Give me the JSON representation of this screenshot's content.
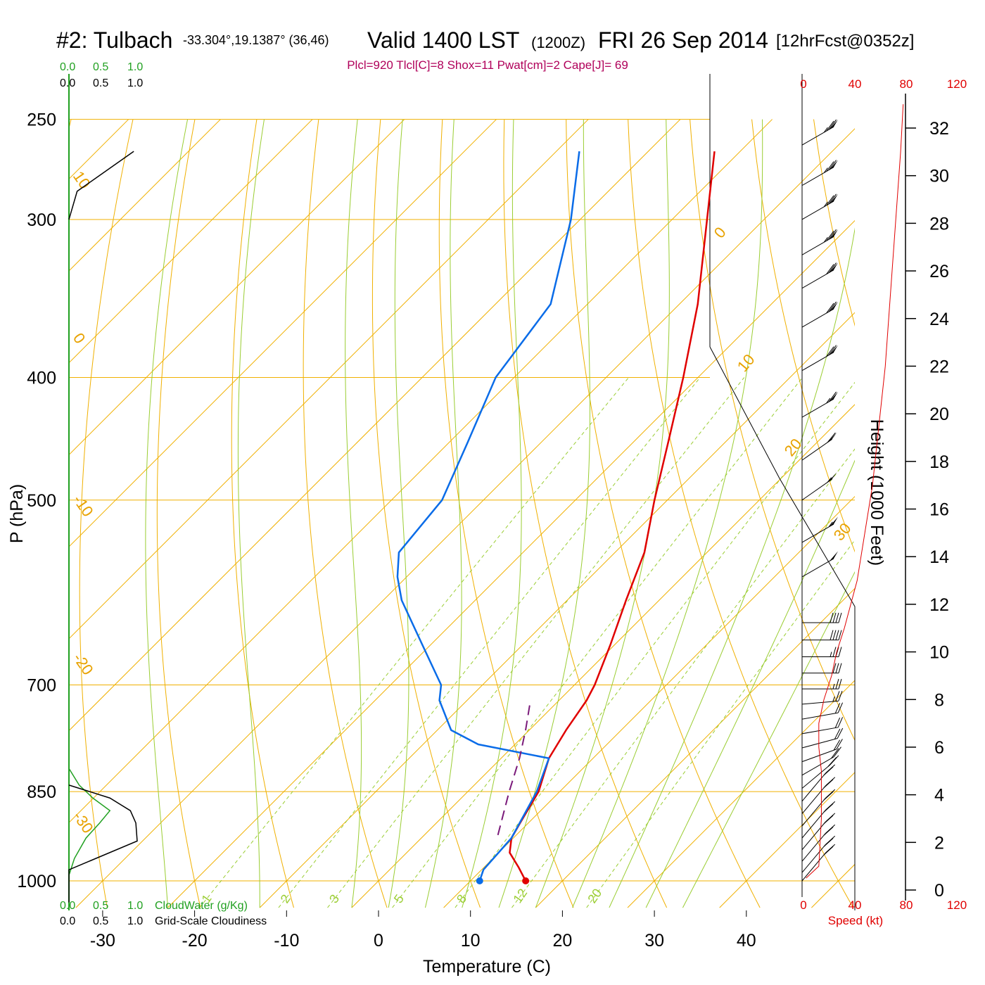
{
  "header": {
    "station": "#2: Tulbach",
    "coords": "-33.304°,19.1387° (36,46)",
    "valid": "Valid 1400 LST",
    "zulu": "(1200Z)",
    "date": "FRI 26 Sep 2014",
    "forecast": "[12hrFcst@0352z]",
    "indices": "Plcl=920 Tlcl[C]=8 Shox=11 Pwat[cm]=2 Cape[J]= 69"
  },
  "colors": {
    "temperature": "#e00000",
    "dewpoint": "#0a6ce8",
    "parcel": "#7a1a7a",
    "isotherm": "#f0b000",
    "dry_adiabat": "#f0b000",
    "moist_adiabat": "#9acd32",
    "mixing_ratio": "#9acd32",
    "cloud_water": "#20a020",
    "speed": "#e00000"
  },
  "labels": {
    "x_axis_title": "Temperature (C)",
    "y_axis_title": "P (hPa)",
    "height_axis_title": "Height (1000 Feet)",
    "speed_axis_title": "Speed (kt)",
    "cloudwater_title": "CloudWater (g/Kg)",
    "cloudiness_title": "Grid-Scale Cloudiness"
  },
  "cloud_scale": [
    "0.0",
    "0.5",
    "1.0"
  ],
  "speed_scale": [
    "0",
    "40",
    "80",
    "120"
  ],
  "isotherm_labels": [
    "0",
    "10",
    "20",
    "30"
  ],
  "dry_adiabat_labels": [
    "10",
    "0",
    "-10",
    "-20",
    "-30"
  ],
  "mixing_ratio_labels": [
    "1",
    "2",
    "3",
    "5",
    "8",
    "12",
    "20"
  ],
  "chart_data": {
    "type": "line",
    "title": "#2: Tulbach -33.304°,19.1387° (36,46) Valid 1400 LST (1200Z) FRI 26 Sep 2014 [12hrFcst@0352z]",
    "xlabel": "Temperature (C)",
    "ylabel": "P (hPa)",
    "x_ticks": [
      "-30",
      "-20",
      "-10",
      "0",
      "10",
      "20",
      "30",
      "40"
    ],
    "y_ticks": [
      "250",
      "300",
      "400",
      "500",
      "700",
      "850",
      "1000"
    ],
    "height_ticks": [
      "0",
      "2",
      "4",
      "6",
      "8",
      "10",
      "12",
      "14",
      "16",
      "18",
      "20",
      "22",
      "24",
      "26",
      "28",
      "30",
      "32"
    ],
    "xlim": [
      -38,
      43
    ],
    "ylim": [
      1050,
      250
    ],
    "y_scale": "log (skew-T)",
    "series": [
      {
        "name": "Temperature",
        "values": [
          {
            "p": 1000,
            "t": 16.0
          },
          {
            "p": 975,
            "t": 13.7
          },
          {
            "p": 950,
            "t": 11.2
          },
          {
            "p": 925,
            "t": 9.8
          },
          {
            "p": 900,
            "t": 9.1
          },
          {
            "p": 850,
            "t": 7.7
          },
          {
            "p": 800,
            "t": 5.2
          },
          {
            "p": 760,
            "t": 4.0
          },
          {
            "p": 720,
            "t": 3.0
          },
          {
            "p": 700,
            "t": 2.2
          },
          {
            "p": 650,
            "t": -0.5
          },
          {
            "p": 600,
            "t": -3.6
          },
          {
            "p": 550,
            "t": -6.8
          },
          {
            "p": 500,
            "t": -11.4
          },
          {
            "p": 450,
            "t": -16.2
          },
          {
            "p": 400,
            "t": -21.6
          },
          {
            "p": 350,
            "t": -28.0
          },
          {
            "p": 300,
            "t": -36.2
          },
          {
            "p": 265,
            "t": -42.8
          }
        ]
      },
      {
        "name": "Dewpoint",
        "values": [
          {
            "p": 1000,
            "t": 11.0
          },
          {
            "p": 980,
            "t": 10.2
          },
          {
            "p": 925,
            "t": 9.8
          },
          {
            "p": 850,
            "t": 7.5
          },
          {
            "p": 800,
            "t": 5.2
          },
          {
            "p": 780,
            "t": -4.0
          },
          {
            "p": 760,
            "t": -8.5
          },
          {
            "p": 720,
            "t": -13.0
          },
          {
            "p": 700,
            "t": -14.5
          },
          {
            "p": 650,
            "t": -21.0
          },
          {
            "p": 600,
            "t": -28.0
          },
          {
            "p": 575,
            "t": -31.0
          },
          {
            "p": 550,
            "t": -33.5
          },
          {
            "p": 500,
            "t": -34.5
          },
          {
            "p": 450,
            "t": -38.0
          },
          {
            "p": 400,
            "t": -42.0
          },
          {
            "p": 350,
            "t": -44.0
          },
          {
            "p": 300,
            "t": -51.0
          },
          {
            "p": 265,
            "t": -57.5
          }
        ]
      },
      {
        "name": "Parcel",
        "values": [
          {
            "p": 920,
            "t": 8.0
          },
          {
            "p": 850,
            "t": 4.5
          },
          {
            "p": 800,
            "t": 2.0
          },
          {
            "p": 760,
            "t": -0.4
          },
          {
            "p": 720,
            "t": -3.1
          }
        ]
      }
    ],
    "surface_points": {
      "temperature": 16.0,
      "dewpoint": 11.0
    },
    "wind_speed_profile": [
      {
        "height_kft": 0.5,
        "speed_kt": 2
      },
      {
        "height_kft": 1,
        "speed_kt": 12
      },
      {
        "height_kft": 3,
        "speed_kt": 14
      },
      {
        "height_kft": 5,
        "speed_kt": 14
      },
      {
        "height_kft": 6,
        "speed_kt": 12
      },
      {
        "height_kft": 7,
        "speed_kt": 12
      },
      {
        "height_kft": 8,
        "speed_kt": 16
      },
      {
        "height_kft": 9,
        "speed_kt": 22
      },
      {
        "height_kft": 10,
        "speed_kt": 26
      },
      {
        "height_kft": 11,
        "speed_kt": 32
      },
      {
        "height_kft": 13,
        "speed_kt": 42
      },
      {
        "height_kft": 15,
        "speed_kt": 48
      },
      {
        "height_kft": 17,
        "speed_kt": 54
      },
      {
        "height_kft": 19,
        "speed_kt": 58
      },
      {
        "height_kft": 22,
        "speed_kt": 64
      },
      {
        "height_kft": 25,
        "speed_kt": 68
      },
      {
        "height_kft": 28,
        "speed_kt": 72
      },
      {
        "height_kft": 31,
        "speed_kt": 76
      },
      {
        "height_kft": 33,
        "speed_kt": 78
      }
    ],
    "cloud_water_profile": [
      {
        "p": 1040,
        "v": 0.0
      },
      {
        "p": 990,
        "v": 0.0
      },
      {
        "p": 960,
        "v": 0.08
      },
      {
        "p": 925,
        "v": 0.25
      },
      {
        "p": 900,
        "v": 0.45
      },
      {
        "p": 880,
        "v": 0.6
      },
      {
        "p": 860,
        "v": 0.35
      },
      {
        "p": 840,
        "v": 0.15
      },
      {
        "p": 815,
        "v": 0.0
      }
    ],
    "cloudiness_profile": [
      {
        "p": 1040,
        "v": 0.0
      },
      {
        "p": 980,
        "v": 0.0
      },
      {
        "p": 930,
        "v": 1.0
      },
      {
        "p": 900,
        "v": 0.98
      },
      {
        "p": 880,
        "v": 0.9
      },
      {
        "p": 860,
        "v": 0.6
      },
      {
        "p": 840,
        "v": 0.0
      }
    ],
    "upper_cloudiness": [
      {
        "p": 300,
        "v": 0.0
      },
      {
        "p": 285,
        "v": 0.12
      },
      {
        "p": 265,
        "v": 0.95
      }
    ],
    "wind_barbs": [
      {
        "p": 1000,
        "dir": 320,
        "kt": 20
      },
      {
        "p": 985,
        "dir": 320,
        "kt": 20
      },
      {
        "p": 965,
        "dir": 320,
        "kt": 20
      },
      {
        "p": 945,
        "dir": 320,
        "kt": 20
      },
      {
        "p": 925,
        "dir": 320,
        "kt": 20
      },
      {
        "p": 905,
        "dir": 320,
        "kt": 20
      },
      {
        "p": 885,
        "dir": 320,
        "kt": 20
      },
      {
        "p": 865,
        "dir": 320,
        "kt": 20
      },
      {
        "p": 845,
        "dir": 310,
        "kt": 20
      },
      {
        "p": 825,
        "dir": 300,
        "kt": 20
      },
      {
        "p": 805,
        "dir": 290,
        "kt": 20
      },
      {
        "p": 785,
        "dir": 285,
        "kt": 20
      },
      {
        "p": 765,
        "dir": 280,
        "kt": 20
      },
      {
        "p": 745,
        "dir": 280,
        "kt": 20
      },
      {
        "p": 725,
        "dir": 275,
        "kt": 25
      },
      {
        "p": 705,
        "dir": 270,
        "kt": 25
      },
      {
        "p": 685,
        "dir": 270,
        "kt": 30
      },
      {
        "p": 665,
        "dir": 270,
        "kt": 35
      },
      {
        "p": 645,
        "dir": 270,
        "kt": 40
      },
      {
        "p": 625,
        "dir": 270,
        "kt": 40
      },
      {
        "p": 575,
        "dir": 300,
        "kt": 50
      },
      {
        "p": 540,
        "dir": 300,
        "kt": 55
      },
      {
        "p": 500,
        "dir": 305,
        "kt": 55
      },
      {
        "p": 465,
        "dir": 305,
        "kt": 60
      },
      {
        "p": 430,
        "dir": 300,
        "kt": 65
      },
      {
        "p": 395,
        "dir": 300,
        "kt": 70
      },
      {
        "p": 365,
        "dir": 300,
        "kt": 70
      },
      {
        "p": 340,
        "dir": 300,
        "kt": 70
      },
      {
        "p": 320,
        "dir": 300,
        "kt": 75
      },
      {
        "p": 300,
        "dir": 300,
        "kt": 75
      },
      {
        "p": 282,
        "dir": 300,
        "kt": 75
      },
      {
        "p": 262,
        "dir": 300,
        "kt": 75
      }
    ],
    "grid": true
  }
}
